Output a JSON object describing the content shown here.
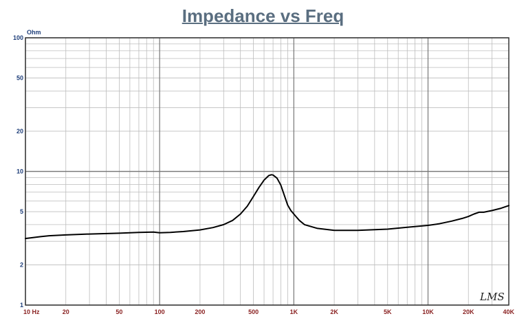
{
  "chart_data": {
    "type": "line",
    "title": "Impedance vs Freq",
    "ylabel": "Ohm",
    "xscale": "log",
    "yscale": "log",
    "xlim": [
      10,
      40000
    ],
    "ylim": [
      1,
      100
    ],
    "grid": true,
    "x_tick_labels": [
      "10  Hz",
      "20",
      "50",
      "100",
      "200",
      "500",
      "1K",
      "2K",
      "5K",
      "10K",
      "20K",
      "40K"
    ],
    "x_tick_values": [
      10,
      20,
      50,
      100,
      200,
      500,
      1000,
      2000,
      5000,
      10000,
      20000,
      40000
    ],
    "y_tick_labels": [
      "100",
      "50",
      "20",
      "10",
      "5",
      "2",
      "1"
    ],
    "y_tick_values": [
      100,
      50,
      20,
      10,
      5,
      2,
      1
    ],
    "series": [
      {
        "name": "",
        "color": "#000000",
        "x": [
          10,
          13,
          15,
          20,
          30,
          50,
          70,
          90,
          100,
          120,
          150,
          200,
          250,
          300,
          350,
          400,
          450,
          500,
          550,
          600,
          650,
          680,
          700,
          750,
          800,
          850,
          900,
          950,
          1000,
          1100,
          1200,
          1500,
          2000,
          3000,
          5000,
          7000,
          10000,
          12000,
          15000,
          18000,
          20000,
          22000,
          24000,
          26000,
          30000,
          35000,
          40000
        ],
        "y": [
          3.15,
          3.25,
          3.3,
          3.35,
          3.4,
          3.45,
          3.5,
          3.52,
          3.48,
          3.5,
          3.55,
          3.65,
          3.8,
          4.0,
          4.3,
          4.8,
          5.5,
          6.5,
          7.6,
          8.6,
          9.3,
          9.45,
          9.4,
          8.9,
          7.9,
          6.6,
          5.6,
          5.1,
          4.8,
          4.3,
          4.0,
          3.75,
          3.62,
          3.62,
          3.7,
          3.82,
          3.95,
          4.05,
          4.25,
          4.45,
          4.6,
          4.8,
          4.95,
          4.95,
          5.1,
          5.3,
          5.55
        ]
      }
    ],
    "watermark": "LMS"
  }
}
